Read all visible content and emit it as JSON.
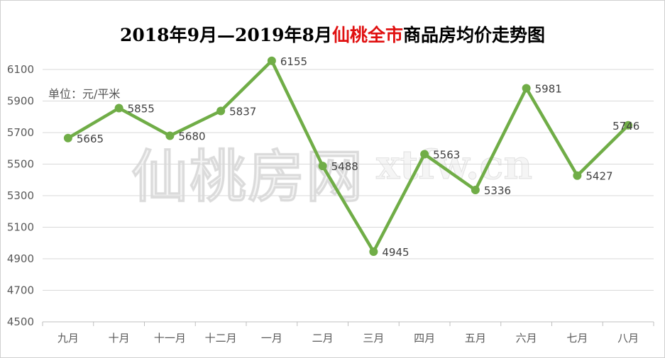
{
  "chart_data": {
    "type": "line",
    "title_part1": "2018年9月—2019年8月",
    "title_highlight": "仙桃全市",
    "title_part2": "商品房均价走势图",
    "unit_label": "单位：元/平米",
    "watermark_cn": "仙桃房网",
    "watermark_latin": "xtfw.cn",
    "categories": [
      "九月",
      "十月",
      "十一月",
      "十二月",
      "一月",
      "二月",
      "三月",
      "四月",
      "五月",
      "六月",
      "七月",
      "八月"
    ],
    "values": [
      5665,
      5855,
      5680,
      5837,
      6155,
      5488,
      4945,
      5563,
      5336,
      5981,
      5427,
      5746
    ],
    "yticks": [
      4500,
      4700,
      4900,
      5100,
      5300,
      5500,
      5700,
      5900,
      6100
    ],
    "ylim": [
      4500,
      6200
    ],
    "grid": true,
    "line_color": "#70ad47",
    "title_highlight_color": "#e01010"
  }
}
